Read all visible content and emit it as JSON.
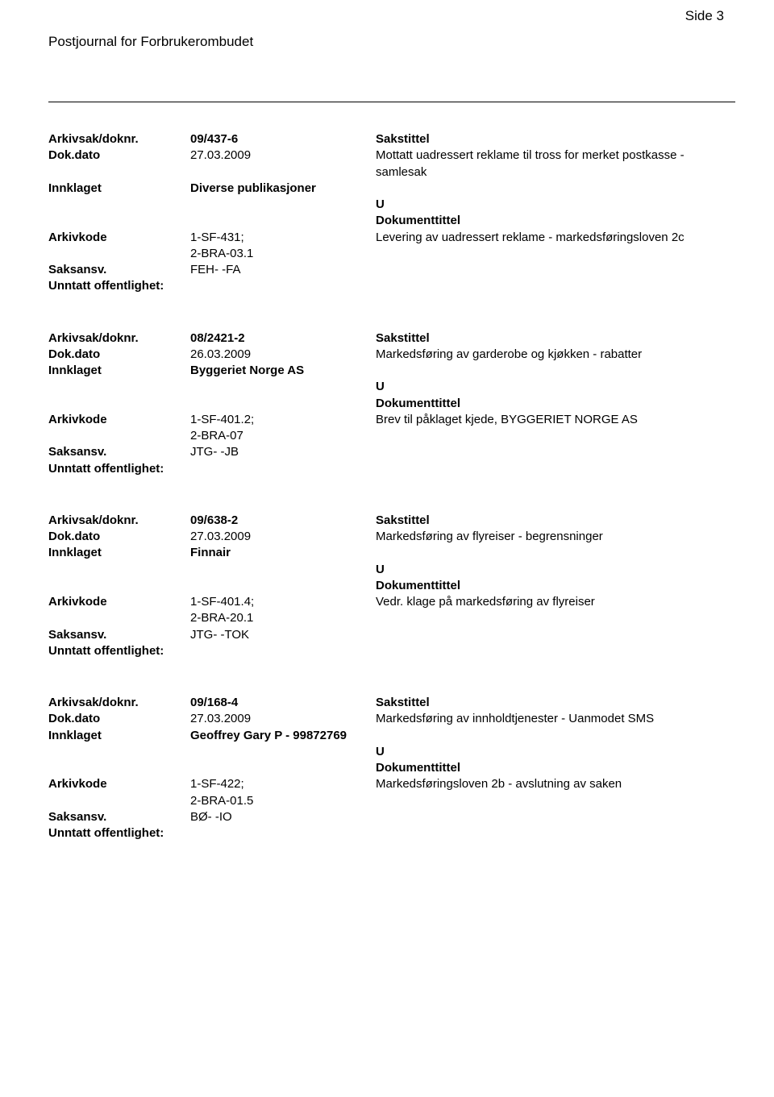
{
  "page_number_label": "Side 3",
  "header_title": "Postjournal for Forbrukerombudet",
  "labels": {
    "arkivsak": "Arkivsak/doknr.",
    "dokdato": "Dok.dato",
    "innklaget": "Innklaget",
    "arkivkode": "Arkivkode",
    "saksansv": "Saksansv.",
    "unntatt": "Unntatt offentlighet:",
    "sakstittel": "Sakstittel",
    "dokumenttittel": "Dokumenttittel",
    "u": "U"
  },
  "entries": [
    {
      "arkivsak": "09/437-6",
      "dokdato": "27.03.2009",
      "innklaget": "Diverse publikasjoner",
      "arkivkode": "1-SF-431;\n2-BRA-03.1",
      "saksansv": "FEH- -FA",
      "sakstittel": "Mottatt uadressert reklame til tross for merket postkasse - samlesak",
      "dokumenttittel": "Levering av uadressert reklame - markedsføringsloven 2c"
    },
    {
      "arkivsak": "08/2421-2",
      "dokdato": "26.03.2009",
      "innklaget": "Byggeriet Norge AS",
      "arkivkode": "1-SF-401.2;\n2-BRA-07",
      "saksansv": "JTG- -JB",
      "sakstittel": "Markedsføring av garderobe og kjøkken - rabatter",
      "dokumenttittel": "Brev til påklaget kjede, BYGGERIET NORGE AS"
    },
    {
      "arkivsak": "09/638-2",
      "dokdato": "27.03.2009",
      "innklaget": "Finnair",
      "arkivkode": "1-SF-401.4;\n2-BRA-20.1",
      "saksansv": "JTG- -TOK",
      "sakstittel": "Markedsføring av flyreiser - begrensninger",
      "dokumenttittel": "Vedr. klage på markedsføring av flyreiser"
    },
    {
      "arkivsak": "09/168-4",
      "dokdato": "27.03.2009",
      "innklaget": "Geoffrey Gary P - 99872769",
      "arkivkode": "1-SF-422;\n2-BRA-01.5",
      "saksansv": "BØ- -IO",
      "sakstittel": "Markedsføring av innholdtjenester - Uanmodet SMS",
      "dokumenttittel": "Markedsføringsloven 2b - avslutning av saken"
    }
  ]
}
